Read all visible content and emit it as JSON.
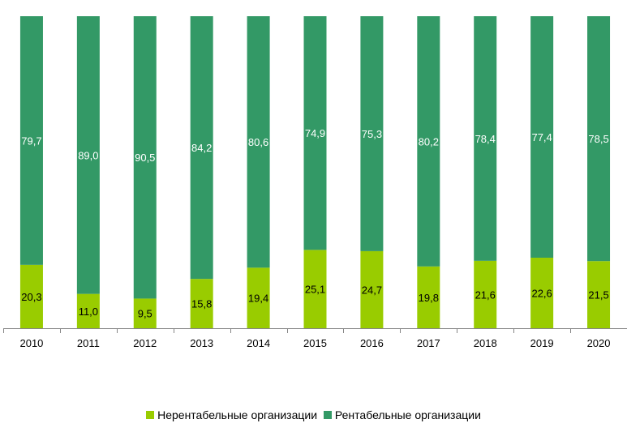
{
  "chart_data": {
    "type": "bar",
    "stacked": true,
    "categories": [
      "2010",
      "2011",
      "2012",
      "2013",
      "2014",
      "2015",
      "2016",
      "2017",
      "2018",
      "2019",
      "2020"
    ],
    "series": [
      {
        "name": "Нерентабельные организации",
        "color": "#99cc00",
        "values": [
          20.3,
          11.0,
          9.5,
          15.8,
          19.4,
          25.1,
          24.7,
          19.8,
          21.6,
          22.6,
          21.5
        ],
        "labels": [
          "20,3",
          "11,0",
          "9,5",
          "15,8",
          "19,4",
          "25,1",
          "24,7",
          "19,8",
          "21,6",
          "22,6",
          "21,5"
        ],
        "label_color": "#000000"
      },
      {
        "name": "Рентабельные организации",
        "color": "#339966",
        "values": [
          79.7,
          89.0,
          90.5,
          84.2,
          80.6,
          74.9,
          75.3,
          80.2,
          78.4,
          77.4,
          78.5
        ],
        "labels": [
          "79,7",
          "89,0",
          "90,5",
          "84,2",
          "80,6",
          "74,9",
          "75,3",
          "80,2",
          "78,4",
          "77,4",
          "78,5"
        ],
        "label_color": "#ffffff"
      }
    ],
    "ylim": [
      0,
      100
    ],
    "grid": false,
    "legend_position": "bottom"
  }
}
